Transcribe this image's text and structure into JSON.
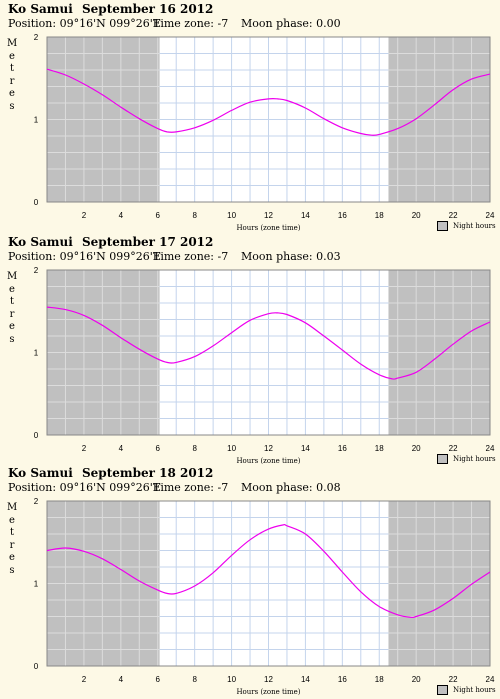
{
  "panels": [
    {
      "location": "Ko Samui",
      "date": "September 16 2012",
      "position": "Position: 09°16'N 099°26'E",
      "timezone": "Time zone: -7",
      "moon": "Moon phase: 0.00",
      "ylabel_letters": [
        "M",
        "e",
        "t",
        "r",
        "e",
        "s"
      ],
      "xlabel": "Hours (zone time)",
      "legend": "Night hours"
    },
    {
      "location": "Ko Samui",
      "date": "September 17 2012",
      "position": "Position: 09°16'N 099°26'E",
      "timezone": "Time zone: -7",
      "moon": "Moon phase: 0.03",
      "ylabel_letters": [
        "M",
        "e",
        "t",
        "r",
        "e",
        "s"
      ],
      "xlabel": "Hours (zone time)",
      "legend": "Night hours"
    },
    {
      "location": "Ko Samui",
      "date": "September 18 2012",
      "position": "Position: 09°16'N 099°26'E",
      "timezone": "Time zone: -7",
      "moon": "Moon phase: 0.08",
      "ylabel_letters": [
        "M",
        "e",
        "t",
        "r",
        "e",
        "s"
      ],
      "xlabel": "Hours (zone time)",
      "legend": "Night hours"
    }
  ],
  "colors": {
    "curve": "#ee00ee",
    "night": "#c0c0c0",
    "grid_day": "#c4d4ec",
    "grid_night": "#dcdcdc",
    "background": "#fdf9e6"
  },
  "chart_data": [
    {
      "type": "line",
      "xlim": [
        0,
        24
      ],
      "ylim": [
        0,
        2
      ],
      "xticks": [
        2,
        4,
        6,
        8,
        10,
        12,
        14,
        16,
        18,
        20,
        22,
        24
      ],
      "yticks": [
        0,
        1,
        2
      ],
      "night_hours": [
        [
          0,
          6.1
        ],
        [
          18.5,
          24
        ]
      ],
      "series": [
        {
          "x": [
            0,
            1,
            2,
            3,
            4,
            5,
            6,
            6.5,
            7,
            8,
            9,
            10,
            11,
            12,
            12.5,
            13,
            14,
            15,
            16,
            17,
            17.6,
            18,
            19,
            20,
            21,
            22,
            23,
            24
          ],
          "values": [
            1.61,
            1.54,
            1.43,
            1.3,
            1.15,
            1.01,
            0.89,
            0.85,
            0.85,
            0.9,
            0.99,
            1.11,
            1.21,
            1.25,
            1.25,
            1.23,
            1.14,
            1.01,
            0.9,
            0.83,
            0.81,
            0.82,
            0.89,
            1.01,
            1.18,
            1.36,
            1.49,
            1.55
          ]
        }
      ]
    },
    {
      "type": "line",
      "xlim": [
        0,
        24
      ],
      "ylim": [
        0,
        2
      ],
      "xticks": [
        2,
        4,
        6,
        8,
        10,
        12,
        14,
        16,
        18,
        20,
        22,
        24
      ],
      "yticks": [
        0,
        1,
        2
      ],
      "night_hours": [
        [
          0,
          6.1
        ],
        [
          18.5,
          24
        ]
      ],
      "series": [
        {
          "x": [
            0,
            1,
            2,
            3,
            4,
            5,
            6,
            6.5,
            7,
            8,
            9,
            10,
            11,
            12,
            12.5,
            13,
            14,
            15,
            16,
            17,
            18,
            18.7,
            19,
            20,
            21,
            22,
            23,
            24
          ],
          "values": [
            1.55,
            1.52,
            1.45,
            1.33,
            1.18,
            1.04,
            0.92,
            0.88,
            0.88,
            0.95,
            1.08,
            1.24,
            1.39,
            1.47,
            1.48,
            1.46,
            1.36,
            1.2,
            1.03,
            0.86,
            0.73,
            0.68,
            0.69,
            0.76,
            0.92,
            1.1,
            1.26,
            1.37
          ]
        }
      ]
    },
    {
      "type": "line",
      "xlim": [
        0,
        24
      ],
      "ylim": [
        0,
        2
      ],
      "xticks": [
        2,
        4,
        6,
        8,
        10,
        12,
        14,
        16,
        18,
        20,
        22,
        24
      ],
      "yticks": [
        0,
        1,
        2
      ],
      "night_hours": [
        [
          0,
          6.1
        ],
        [
          18.5,
          24
        ]
      ],
      "series": [
        {
          "x": [
            0,
            1,
            2,
            3,
            4,
            5,
            6,
            6.5,
            7,
            8,
            9,
            10,
            11,
            12,
            12.8,
            13,
            14,
            15,
            16,
            17,
            18,
            19,
            19.7,
            20,
            21,
            22,
            23,
            24
          ],
          "values": [
            1.4,
            1.43,
            1.39,
            1.3,
            1.17,
            1.03,
            0.92,
            0.88,
            0.88,
            0.97,
            1.13,
            1.34,
            1.53,
            1.66,
            1.71,
            1.7,
            1.6,
            1.39,
            1.14,
            0.9,
            0.72,
            0.62,
            0.59,
            0.6,
            0.68,
            0.82,
            0.99,
            1.14
          ]
        }
      ]
    }
  ]
}
